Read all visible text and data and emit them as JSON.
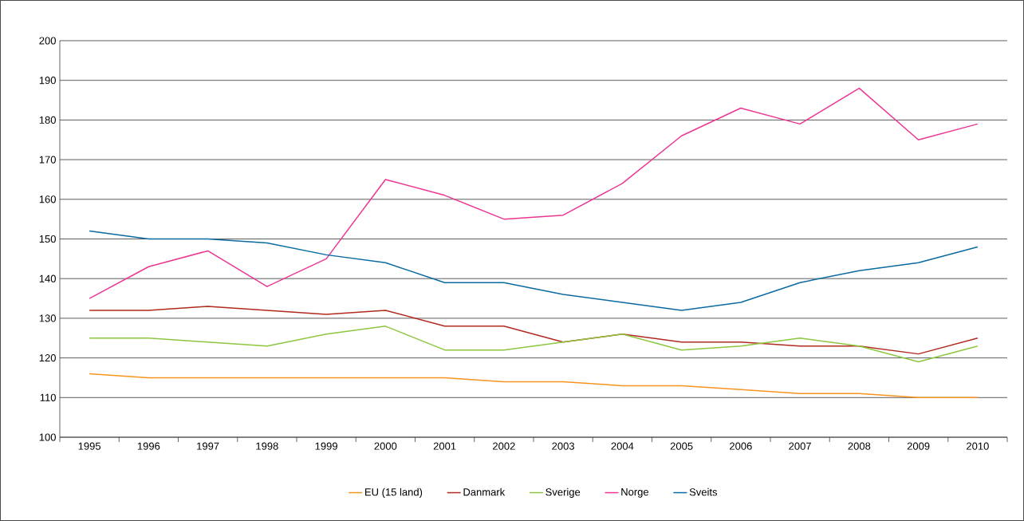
{
  "chart_data": {
    "type": "line",
    "categories": [
      "1995",
      "1996",
      "1997",
      "1998",
      "1999",
      "2000",
      "2001",
      "2002",
      "2003",
      "2004",
      "2005",
      "2006",
      "2007",
      "2008",
      "2009",
      "2010"
    ],
    "ylim": [
      100,
      200
    ],
    "yticks": [
      100,
      110,
      120,
      130,
      140,
      150,
      160,
      170,
      180,
      190,
      200
    ],
    "grid": "y",
    "legend": "bottom",
    "marker": "none",
    "line_style": "solid",
    "series": [
      {
        "name": "EU (15 land)",
        "color": "#f7941d",
        "values": [
          116,
          115,
          115,
          115,
          115,
          115,
          115,
          114,
          114,
          113,
          113,
          112,
          111,
          111,
          110,
          110
        ]
      },
      {
        "name": "Danmark",
        "color": "#b22a1f",
        "values": [
          132,
          132,
          133,
          132,
          131,
          132,
          128,
          128,
          124,
          126,
          124,
          124,
          123,
          123,
          121,
          125
        ]
      },
      {
        "name": "Sverige",
        "color": "#8dc63f",
        "values": [
          125,
          125,
          124,
          123,
          126,
          128,
          122,
          122,
          124,
          126,
          122,
          123,
          125,
          123,
          119,
          123
        ]
      },
      {
        "name": "Norge",
        "color": "#ec3694",
        "values": [
          135,
          143,
          147,
          138,
          145,
          165,
          161,
          155,
          156,
          164,
          176,
          183,
          179,
          188,
          175,
          179
        ]
      },
      {
        "name": "Sveits",
        "color": "#0a6aa1",
        "values": [
          152,
          150,
          150,
          149,
          146,
          144,
          139,
          139,
          136,
          134,
          132,
          134,
          139,
          142,
          144,
          148
        ]
      }
    ]
  }
}
